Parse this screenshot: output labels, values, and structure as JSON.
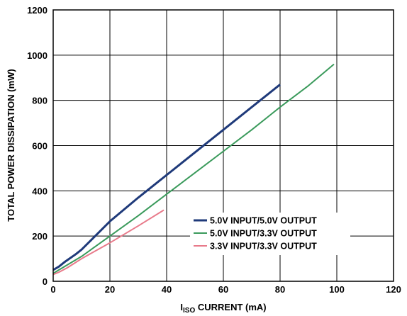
{
  "chart_data": {
    "type": "line",
    "title": "",
    "xlabel": {
      "main": "I",
      "sub": "ISO",
      "rest": " CURRENT (mA)"
    },
    "ylabel": "TOTAL POWER DISSIPATION (mW)",
    "xlim": [
      0,
      120
    ],
    "ylim": [
      0,
      1200
    ],
    "xticks": [
      "0",
      "20",
      "40",
      "60",
      "80",
      "100",
      "120"
    ],
    "yticks": [
      "0",
      "200",
      "400",
      "600",
      "800",
      "1000",
      "1200"
    ],
    "grid": true,
    "legend_position": "bottom-right",
    "series": [
      {
        "name": "5.0V INPUT/5.0V OUTPUT",
        "color": "#1f3a7a",
        "x": [
          0,
          2,
          4,
          8,
          10,
          20,
          30,
          40,
          50,
          60,
          70,
          80
        ],
        "y": [
          50,
          65,
          85,
          120,
          140,
          265,
          370,
          470,
          570,
          670,
          770,
          870
        ]
      },
      {
        "name": "5.0V INPUT/3.3V OUTPUT",
        "color": "#3a9a5b",
        "x": [
          0,
          2,
          10,
          20,
          30,
          40,
          50,
          60,
          70,
          80,
          90,
          99
        ],
        "y": [
          35,
          50,
          110,
          200,
          290,
          385,
          480,
          575,
          670,
          770,
          865,
          960
        ]
      },
      {
        "name": "3.3V INPUT/3.3V OUTPUT",
        "color": "#e87a8a",
        "x": [
          0,
          2,
          5,
          10,
          20,
          30,
          39
        ],
        "y": [
          30,
          40,
          60,
          100,
          170,
          245,
          315
        ]
      }
    ]
  }
}
